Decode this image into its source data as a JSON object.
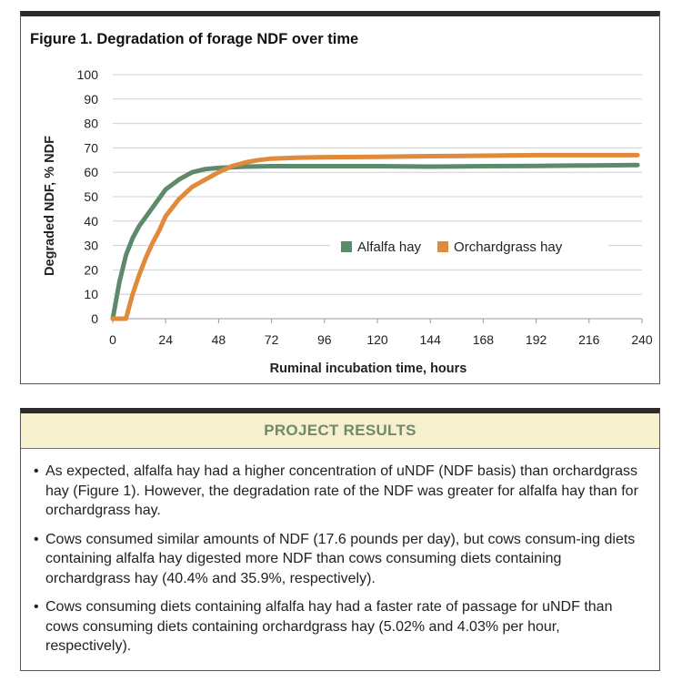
{
  "figure": {
    "title": "Figure 1. Degradation of forage NDF over time"
  },
  "chart_data": {
    "type": "line",
    "xlabel": "Ruminal incubation time, hours",
    "ylabel": "Degraded NDF, % NDF",
    "xlim": [
      0,
      240
    ],
    "ylim": [
      0,
      100
    ],
    "x_ticks": [
      0,
      24,
      48,
      72,
      96,
      120,
      144,
      168,
      192,
      216,
      240
    ],
    "y_ticks": [
      0,
      10,
      20,
      30,
      40,
      50,
      60,
      70,
      80,
      90,
      100
    ],
    "grid": "horizontal",
    "legend": "center-right",
    "series": [
      {
        "name": "Alfalfa hay",
        "color": "#5d8a6a",
        "points": [
          [
            0,
            0
          ],
          [
            3,
            15
          ],
          [
            6,
            26
          ],
          [
            9,
            33
          ],
          [
            12,
            38
          ],
          [
            16,
            43
          ],
          [
            20,
            48
          ],
          [
            24,
            53
          ],
          [
            30,
            57
          ],
          [
            36,
            60
          ],
          [
            42,
            61.3
          ],
          [
            48,
            61.8
          ],
          [
            60,
            62.3
          ],
          [
            72,
            62.5
          ],
          [
            96,
            62.5
          ],
          [
            120,
            62.5
          ],
          [
            144,
            62.3
          ],
          [
            168,
            62.5
          ],
          [
            192,
            62.6
          ],
          [
            216,
            62.8
          ],
          [
            238,
            63
          ]
        ]
      },
      {
        "name": "Orchardgrass hay",
        "color": "#e08a3c",
        "points": [
          [
            0,
            0
          ],
          [
            6,
            0
          ],
          [
            9,
            10
          ],
          [
            12,
            18
          ],
          [
            15,
            25
          ],
          [
            18,
            31
          ],
          [
            21,
            36
          ],
          [
            24,
            42
          ],
          [
            30,
            49
          ],
          [
            36,
            54
          ],
          [
            42,
            57
          ],
          [
            48,
            60
          ],
          [
            54,
            62.5
          ],
          [
            60,
            64
          ],
          [
            66,
            65
          ],
          [
            72,
            65.6
          ],
          [
            84,
            66
          ],
          [
            96,
            66.2
          ],
          [
            120,
            66.3
          ],
          [
            144,
            66.6
          ],
          [
            168,
            66.8
          ],
          [
            192,
            67
          ],
          [
            216,
            67
          ],
          [
            238,
            67
          ]
        ]
      }
    ]
  },
  "results": {
    "heading": "PROJECT RESULTS",
    "items": [
      {
        "bullet": "•",
        "text": "As expected, alfalfa hay had a higher concentration of uNDF (NDF basis) than orchardgrass hay (Figure 1). However, the degradation rate of the NDF was greater for alfalfa hay than for orchardgrass hay."
      },
      {
        "bullet": "•",
        "text": "Cows consumed similar amounts of NDF (17.6 pounds per day), but cows consum-ing diets containing alfalfa hay digested more NDF than cows consuming diets containing orchardgrass hay (40.4% and 35.9%, respectively)."
      },
      {
        "bullet": "•",
        "text": "Cows consuming diets containing alfalfa hay had a faster rate of passage for uNDF than cows consuming diets containing orchardgrass hay (5.02% and 4.03% per hour, respectively)."
      }
    ]
  }
}
